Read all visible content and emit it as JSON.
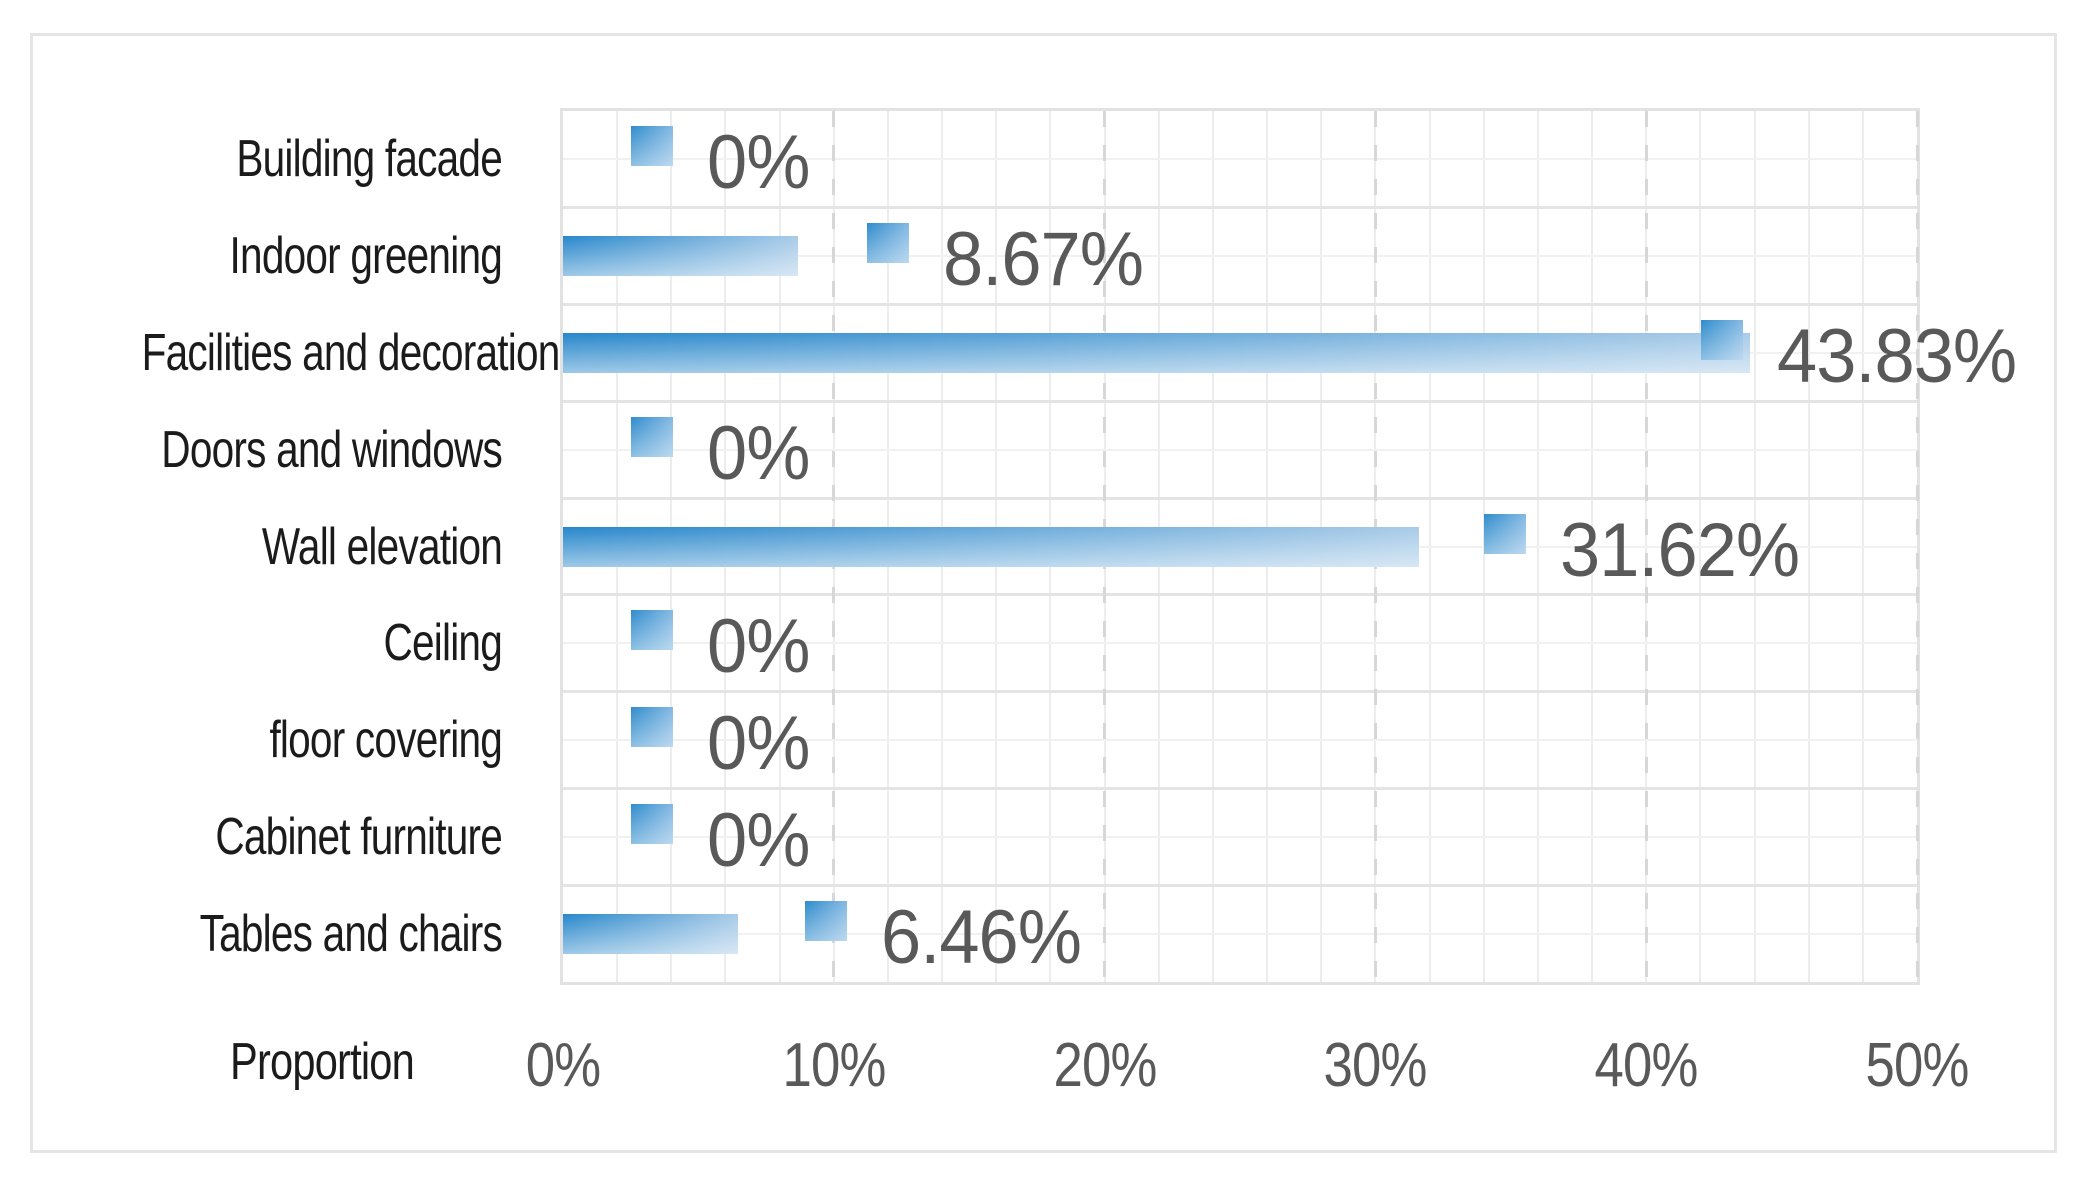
{
  "chart_data": {
    "type": "bar",
    "orientation": "horizontal",
    "title": "",
    "xlabel": "Proportion",
    "categories": [
      "Building facade",
      "Indoor greening",
      "Facilities and decoration",
      "Doors and windows",
      "Wall elevation",
      "Ceiling",
      "floor covering",
      "Cabinet furniture",
      "Tables and chairs"
    ],
    "values": [
      0,
      8.67,
      43.83,
      0,
      31.62,
      0,
      0,
      0,
      6.46
    ],
    "data_labels": [
      "0%",
      "8.67%",
      "43.83%",
      "0%",
      "31.62%",
      "0%",
      "0%",
      "0%",
      "6.46%"
    ],
    "marker_positions_pct": [
      3.3,
      12.0,
      42.8,
      3.3,
      34.8,
      3.3,
      3.3,
      3.3,
      9.7
    ],
    "x_ticks": [
      {
        "value": 0,
        "label": "0%"
      },
      {
        "value": 10,
        "label": "10%"
      },
      {
        "value": 20,
        "label": "20%"
      },
      {
        "value": 30,
        "label": "30%"
      },
      {
        "value": 40,
        "label": "40%"
      },
      {
        "value": 50,
        "label": "50%"
      }
    ],
    "xlim": [
      0,
      50
    ],
    "minor_x_step_pct": 2,
    "legend": "none",
    "grid": "major-dashed-vertical, minor-solid",
    "style": {
      "bar_gradient_start": "#2787CB",
      "bar_gradient_end": "#A8CBE8",
      "marker_gradient_start": "#2F8CCD",
      "marker_gradient_end": "#85B9E3",
      "data_label_color": "#595959",
      "tick_label_color": "#595959",
      "category_label_color": "#1B1B1B",
      "gridline_minor_color": "#EDEDED",
      "gridline_major_dash_color": "#D7D7D7",
      "plot_border_color": "#E2E2E2",
      "figure_border_color": "#E5E5E5",
      "background_color": "#FFFFFF"
    }
  }
}
